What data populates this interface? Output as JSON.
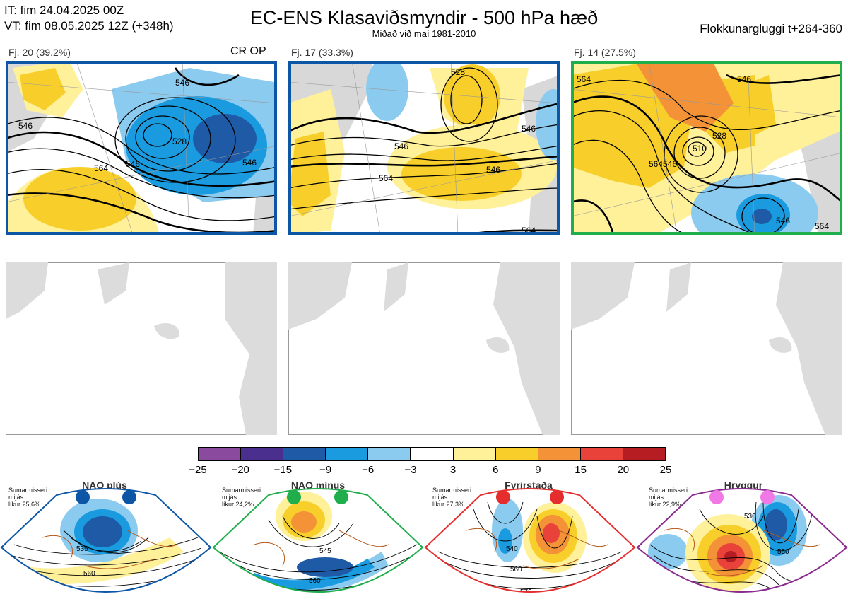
{
  "header": {
    "it_line": "IT: fim 24.04.2025 00Z",
    "vt_line": "VT: fim 08.05.2025 12Z  (+348h)",
    "title": "EC-ENS Klasaviðsmyndir - 500 hPa hæð",
    "subtitle": "Miðað við maí 1981-2010",
    "window": "Flokkunargluggi t+264-360"
  },
  "panels": [
    {
      "label": "Fj. 20 (39.2%)",
      "extra": "CR OP",
      "frame_color": "#0d56a6",
      "contours": [
        "546",
        "546",
        "528",
        "546",
        "564",
        "546"
      ]
    },
    {
      "label": "Fj. 17 (33.3%)",
      "extra": "",
      "frame_color": "#0d56a6",
      "contours": [
        "528",
        "546",
        "546",
        "564",
        "564",
        "546"
      ]
    },
    {
      "label": "Fj. 14 (27.5%)",
      "extra": "",
      "frame_color": "#1fae4b",
      "contours": [
        "564",
        "546",
        "510",
        "528",
        "546",
        "564",
        "546",
        "564"
      ]
    }
  ],
  "colorbar": {
    "labels": [
      "−25",
      "−20",
      "−15",
      "−9",
      "−6",
      "−3",
      "3",
      "6",
      "9",
      "15",
      "20",
      "25"
    ],
    "colors": [
      "#8a4a9e",
      "#4a2f8f",
      "#1e5aa6",
      "#1a9be0",
      "#8ccbf0",
      "#ffffff",
      "#fff09a",
      "#f8cf2a",
      "#f39236",
      "#e8423a",
      "#b61d22"
    ]
  },
  "regimes": [
    {
      "name": "NAO plús",
      "line1": "Sumarmisseri",
      "line2": "mijás",
      "line3": "líkur 25,6%",
      "color": "#0d56a6",
      "contours": [
        "535",
        "560"
      ]
    },
    {
      "name": "NAO mínus",
      "line1": "Sumarmisseri",
      "line2": "mijás",
      "line3": "líkur 24,2%",
      "color": "#1fae4b",
      "contours": [
        "545",
        "560",
        "575"
      ]
    },
    {
      "name": "Fyrirstaða",
      "line1": "Sumarmisseri",
      "line2": "mijás",
      "line3": "líkur 27,3%",
      "color": "#e52d2d",
      "contours": [
        "540",
        "560",
        "575"
      ]
    },
    {
      "name": "Hryggur",
      "line1": "Sumarmisseri",
      "line2": "mijás",
      "line3": "líkur 22,9%",
      "color": "#8a2a8e",
      "dot_color": "#f079e6",
      "contours": [
        "530",
        "550",
        "575"
      ]
    }
  ]
}
